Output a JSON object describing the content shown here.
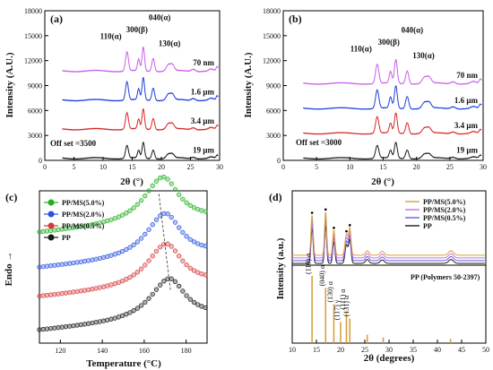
{
  "chart_data": [
    {
      "id": "a",
      "type": "line",
      "panel_label": "(a)",
      "xlabel": "2θ (°)",
      "ylabel": "Intensity (A.U.)",
      "xlim": [
        0,
        30
      ],
      "ylim": [
        0,
        18000
      ],
      "xticks": [
        "0",
        "5",
        "10",
        "15",
        "20",
        "25",
        "30"
      ],
      "yticks": [
        "0",
        "3000",
        "6000",
        "9000",
        "12000",
        "15000",
        "18000"
      ],
      "offset_text": "Off set =3500",
      "offset": 3500,
      "peaks": [
        {
          "label": "110(α)",
          "x": 14.1
        },
        {
          "label": "300(β)",
          "x": 16.1
        },
        {
          "label": "040(α)",
          "x": 16.9
        },
        {
          "label": "130(α)",
          "x": 18.6
        }
      ],
      "series": [
        {
          "name": "19 μm",
          "color": "#1a1a1a",
          "level": 0
        },
        {
          "name": "3.4 μm",
          "color": "#d62728",
          "level": 1
        },
        {
          "name": "1.6 μm",
          "color": "#1f3fdb",
          "level": 2
        },
        {
          "name": "70 nm",
          "color": "#c85ee8",
          "level": 3
        }
      ]
    },
    {
      "id": "b",
      "type": "line",
      "panel_label": "(b)",
      "xlabel": "2θ (°)",
      "ylabel": "Intensity (A.U.)",
      "xlim": [
        0,
        30
      ],
      "ylim": [
        0,
        18000
      ],
      "xticks": [
        "0",
        "5",
        "10",
        "15",
        "20",
        "25",
        "30"
      ],
      "yticks": [
        "0",
        "3000",
        "6000",
        "9000",
        "12000",
        "15000",
        "18000"
      ],
      "offset_text": "Off set =3000",
      "offset": 3000,
      "peaks": [
        {
          "label": "110(α)",
          "x": 14.1
        },
        {
          "label": "300(β)",
          "x": 16.1
        },
        {
          "label": "040(α)",
          "x": 16.9
        },
        {
          "label": "130(α)",
          "x": 18.6
        }
      ],
      "series": [
        {
          "name": "19 μm",
          "color": "#1a1a1a",
          "level": 0
        },
        {
          "name": "3.4 μm",
          "color": "#d62728",
          "level": 1
        },
        {
          "name": "1.6 μm",
          "color": "#1f3fdb",
          "level": 2
        },
        {
          "name": "70 nm",
          "color": "#c85ee8",
          "level": 3
        }
      ]
    },
    {
      "id": "c",
      "type": "scatter",
      "panel_label": "(c)",
      "xlabel": "Temperature (°C)",
      "ylabel": "Endo →",
      "xlim": [
        110,
        190
      ],
      "xticks": [
        "120",
        "140",
        "160",
        "180"
      ],
      "series": [
        {
          "name": "PP/MS(5.0%)",
          "color": "#22b022",
          "peak_x": 169.0,
          "base": 0.72
        },
        {
          "name": "PP/MS(2.0%)",
          "color": "#2a52e0",
          "peak_x": 170.0,
          "base": 0.49
        },
        {
          "name": "PP/MS(0.5%)",
          "color": "#d63a3a",
          "peak_x": 170.5,
          "base": 0.3
        },
        {
          "name": "PP",
          "color": "#1a1a1a",
          "peak_x": 172.0,
          "base": 0.08
        }
      ]
    },
    {
      "id": "d",
      "type": "line",
      "panel_label": "(d)",
      "xlabel": "2θ (degrees)",
      "ylabel": "Intensity (a.u.)",
      "xlim": [
        10,
        50
      ],
      "xticks": [
        "10",
        "15",
        "20",
        "25",
        "30",
        "35",
        "40",
        "45",
        "50"
      ],
      "series": [
        {
          "name": "PP/MS(5.0%)",
          "color": "#d8a040"
        },
        {
          "name": "PP/MS(2.0%)",
          "color": "#c870e0"
        },
        {
          "name": "PP/MS(0.5%)",
          "color": "#6a5ae8"
        },
        {
          "name": "PP",
          "color": "#1a1a1a"
        }
      ],
      "reference": {
        "title": "PP (Polymers 50-2397)",
        "color": "#d8a040",
        "sticks": [
          {
            "x": 14.1,
            "h": 0.95,
            "label": "(110) α"
          },
          {
            "x": 16.9,
            "h": 0.78,
            "label": "(040) α"
          },
          {
            "x": 18.6,
            "h": 0.55,
            "label": "(130) α"
          },
          {
            "x": 20.0,
            "h": 0.3,
            "label": "(117) γ"
          },
          {
            "x": 21.2,
            "h": 0.45,
            "label": "(111) α"
          },
          {
            "x": 21.9,
            "h": 0.35,
            "label": "(131) α"
          },
          {
            "x": 25.5,
            "h": 0.12,
            "label": ""
          },
          {
            "x": 28.8,
            "h": 0.08,
            "label": ""
          },
          {
            "x": 42.7,
            "h": 0.06,
            "label": ""
          }
        ]
      }
    }
  ]
}
